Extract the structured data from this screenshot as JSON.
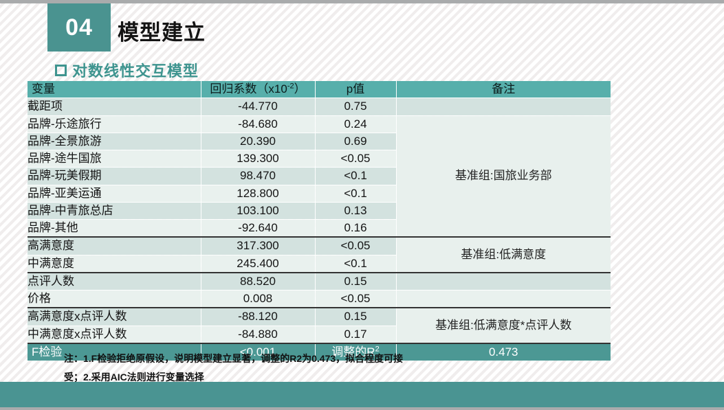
{
  "header": {
    "section_number": "04",
    "title": "模型建立",
    "subtitle": "对数线性交互模型"
  },
  "table": {
    "columns": {
      "variable": "变量",
      "coef_pre": "回归系数（x10",
      "coef_sup": "-2",
      "coef_post": "）",
      "p": "p值",
      "note": "备注"
    },
    "rows": [
      {
        "variable": "截距项",
        "coef": "-44.770",
        "p": "0.75",
        "note": {
          "text": "",
          "rowspan": 1,
          "merged": false
        }
      },
      {
        "variable": "品牌-乐途旅行",
        "coef": "-84.680",
        "p": "0.24",
        "note": {
          "text": "基准组:国旅业务部",
          "rowspan": 7,
          "merged": true
        }
      },
      {
        "variable": "品牌-全景旅游",
        "coef": "20.390",
        "p": "0.69"
      },
      {
        "variable": "品牌-途牛国旅",
        "coef": "139.300",
        "p": "<0.05"
      },
      {
        "variable": "品牌-玩美假期",
        "coef": "98.470",
        "p": "<0.1"
      },
      {
        "variable": "品牌-亚美运通",
        "coef": "128.800",
        "p": "<0.1"
      },
      {
        "variable": "品牌-中青旅总店",
        "coef": "103.100",
        "p": "0.13"
      },
      {
        "variable": "品牌-其他",
        "coef": "-92.640",
        "p": "0.16"
      },
      {
        "variable": "高满意度",
        "coef": "317.300",
        "p": "<0.05",
        "section_start": true,
        "note": {
          "text": "基准组:低满意度",
          "rowspan": 2,
          "merged": true
        }
      },
      {
        "variable": "中满意度",
        "coef": "245.400",
        "p": "<0.1"
      },
      {
        "variable": "点评人数",
        "coef": "88.520",
        "p": "0.15",
        "section_start": true,
        "note": {
          "text": "",
          "rowspan": 1,
          "merged": false
        }
      },
      {
        "variable": "价格",
        "coef": "0.008",
        "p": "<0.05",
        "note": {
          "text": "",
          "rowspan": 1,
          "merged": false
        }
      },
      {
        "variable": "高满意度x点评人数",
        "coef": "-88.120",
        "p": "0.15",
        "section_start": true,
        "note": {
          "text": "基准组:低满意度*点评人数",
          "rowspan": 2,
          "merged": true
        }
      },
      {
        "variable": "中满意度x点评人数",
        "coef": "-84.880",
        "p": "0.17"
      }
    ],
    "footer_row": {
      "label": "F检验",
      "value": "<0.001",
      "r2_label_pre": "调整的R",
      "r2_label_sup": "2",
      "r2_value": "0.473"
    }
  },
  "footnote": {
    "line1": "注：1.F检验拒绝原假设，说明模型建立显著，调整的R2为0.473，拟合程度可接",
    "line2": "受；2.采用AIC法则进行变量选择"
  },
  "colors": {
    "accent_teal": "#4a9390",
    "table_header_teal": "#57afab",
    "footer_row_teal": "#4c9894",
    "row_dark": "#d3e2df",
    "row_light": "#e9f1ee",
    "note_cell": "#e8f0ed",
    "gray_strip": "#a9abac"
  }
}
